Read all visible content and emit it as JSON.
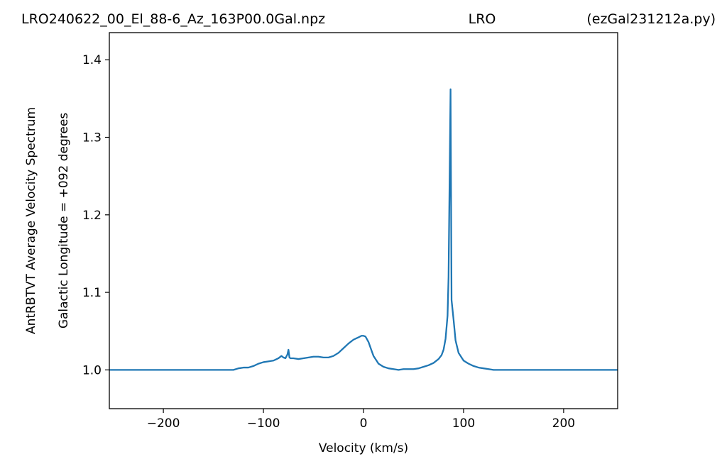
{
  "header": {
    "left": "LRO240622_00_El_88-6_Az_163P00.0Gal.npz",
    "center": "LRO",
    "right": "(ezGal231212a.py)"
  },
  "chart_data": {
    "type": "line",
    "title": "",
    "xlabel": "Velocity (km/s)",
    "ylabel": "AntRBTVT Average Velocity Spectrum",
    "ylabel2": "Galactic Longitude = +092 degrees",
    "xlim": [
      -254,
      254
    ],
    "ylim": [
      0.95,
      1.435
    ],
    "xticks": [
      -200,
      -100,
      0,
      100,
      200
    ],
    "xtick_labels": [
      "−200",
      "−100",
      "0",
      "100",
      "200"
    ],
    "yticks": [
      1.0,
      1.1,
      1.2,
      1.3,
      1.4
    ],
    "ytick_labels": [
      "1.0",
      "1.1",
      "1.2",
      "1.3",
      "1.4"
    ],
    "grid": false,
    "line_color": "#1f77b4",
    "series": [
      {
        "x": [
          -254,
          -130,
          -125,
          -120,
          -115,
          -110,
          -105,
          -100,
          -95,
          -90,
          -85,
          -82,
          -80,
          -78,
          -76,
          -75,
          -74,
          -73,
          -70,
          -65,
          -60,
          -55,
          -50,
          -45,
          -40,
          -35,
          -30,
          -25,
          -20,
          -15,
          -10,
          -5,
          -2,
          0,
          2,
          5,
          8,
          10,
          15,
          20,
          25,
          30,
          35,
          40,
          45,
          50,
          55,
          60,
          65,
          70,
          75,
          78,
          80,
          82,
          84,
          85,
          86,
          87,
          88,
          90,
          92,
          95,
          100,
          105,
          110,
          115,
          120,
          125,
          130,
          254
        ],
        "y": [
          1.0,
          1.0,
          1.002,
          1.003,
          1.003,
          1.005,
          1.008,
          1.01,
          1.011,
          1.012,
          1.015,
          1.018,
          1.016,
          1.015,
          1.02,
          1.026,
          1.016,
          1.015,
          1.015,
          1.014,
          1.015,
          1.016,
          1.017,
          1.017,
          1.016,
          1.016,
          1.018,
          1.022,
          1.028,
          1.034,
          1.039,
          1.042,
          1.044,
          1.044,
          1.043,
          1.036,
          1.025,
          1.018,
          1.008,
          1.004,
          1.002,
          1.001,
          1.0,
          1.001,
          1.001,
          1.001,
          1.002,
          1.004,
          1.006,
          1.009,
          1.014,
          1.019,
          1.026,
          1.04,
          1.07,
          1.12,
          1.24,
          1.362,
          1.09,
          1.065,
          1.038,
          1.022,
          1.012,
          1.008,
          1.005,
          1.003,
          1.002,
          1.001,
          1.0,
          1.0
        ]
      }
    ]
  }
}
